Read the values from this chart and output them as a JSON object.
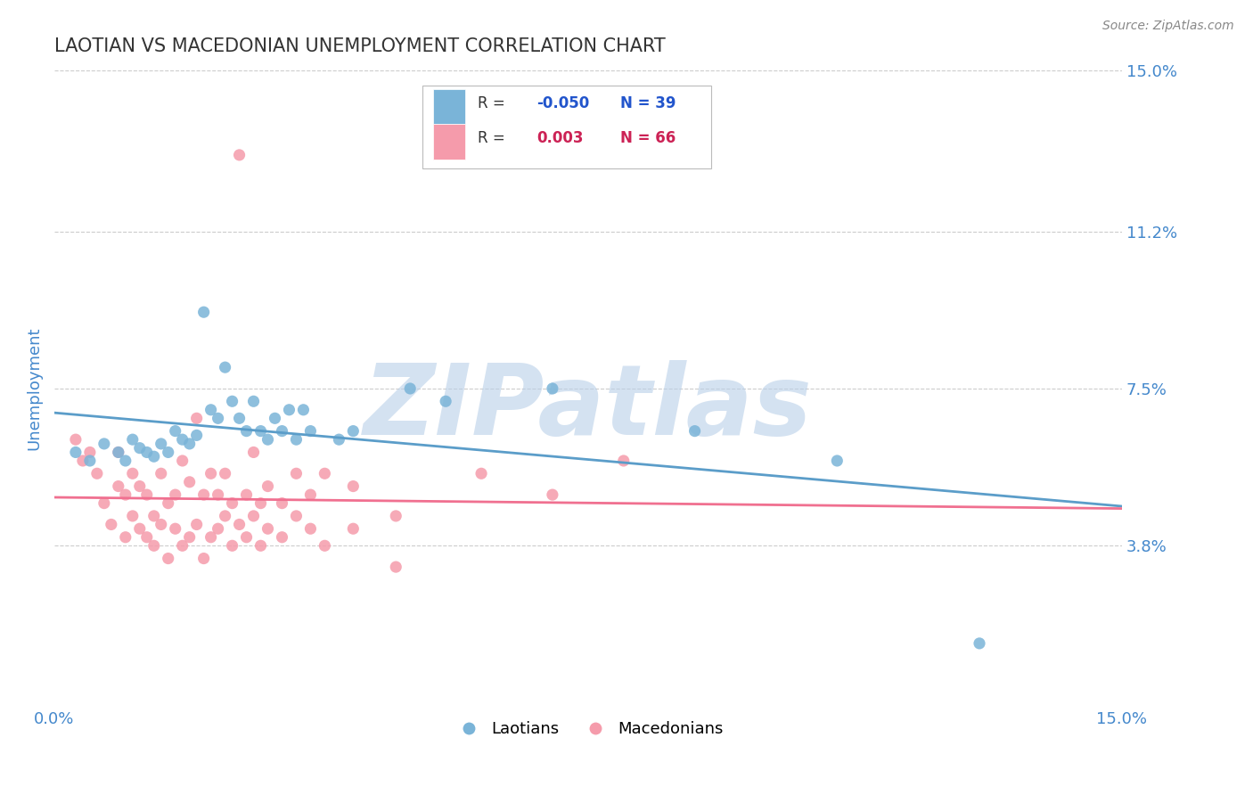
{
  "title": "LAOTIAN VS MACEDONIAN UNEMPLOYMENT CORRELATION CHART",
  "source": "Source: ZipAtlas.com",
  "ylabel": "Unemployment",
  "xlim": [
    0,
    0.15
  ],
  "ylim": [
    0,
    0.15
  ],
  "xticklabels": [
    "0.0%",
    "15.0%"
  ],
  "ytick_values": [
    0.038,
    0.075,
    0.112,
    0.15
  ],
  "ytick_labels": [
    "3.8%",
    "7.5%",
    "11.2%",
    "15.0%"
  ],
  "laotian_color": "#7ab4d8",
  "macedonian_color": "#f59bab",
  "laotian_line_color": "#5b9dc9",
  "macedonian_line_color": "#f07090",
  "legend_R_color_laotian": "#2255cc",
  "legend_R_color_macedonian": "#cc2255",
  "laotian_points": [
    [
      0.003,
      0.06
    ],
    [
      0.005,
      0.058
    ],
    [
      0.007,
      0.062
    ],
    [
      0.009,
      0.06
    ],
    [
      0.01,
      0.058
    ],
    [
      0.011,
      0.063
    ],
    [
      0.012,
      0.061
    ],
    [
      0.013,
      0.06
    ],
    [
      0.014,
      0.059
    ],
    [
      0.015,
      0.062
    ],
    [
      0.016,
      0.06
    ],
    [
      0.017,
      0.065
    ],
    [
      0.018,
      0.063
    ],
    [
      0.019,
      0.062
    ],
    [
      0.02,
      0.064
    ],
    [
      0.021,
      0.093
    ],
    [
      0.022,
      0.07
    ],
    [
      0.023,
      0.068
    ],
    [
      0.024,
      0.08
    ],
    [
      0.025,
      0.072
    ],
    [
      0.026,
      0.068
    ],
    [
      0.027,
      0.065
    ],
    [
      0.028,
      0.072
    ],
    [
      0.029,
      0.065
    ],
    [
      0.03,
      0.063
    ],
    [
      0.031,
      0.068
    ],
    [
      0.032,
      0.065
    ],
    [
      0.033,
      0.07
    ],
    [
      0.034,
      0.063
    ],
    [
      0.035,
      0.07
    ],
    [
      0.036,
      0.065
    ],
    [
      0.04,
      0.063
    ],
    [
      0.042,
      0.065
    ],
    [
      0.05,
      0.075
    ],
    [
      0.055,
      0.072
    ],
    [
      0.07,
      0.075
    ],
    [
      0.09,
      0.065
    ],
    [
      0.11,
      0.058
    ],
    [
      0.13,
      0.015
    ]
  ],
  "macedonian_points": [
    [
      0.003,
      0.063
    ],
    [
      0.004,
      0.058
    ],
    [
      0.005,
      0.06
    ],
    [
      0.006,
      0.055
    ],
    [
      0.007,
      0.048
    ],
    [
      0.008,
      0.043
    ],
    [
      0.009,
      0.052
    ],
    [
      0.009,
      0.06
    ],
    [
      0.01,
      0.05
    ],
    [
      0.01,
      0.04
    ],
    [
      0.011,
      0.045
    ],
    [
      0.011,
      0.055
    ],
    [
      0.012,
      0.042
    ],
    [
      0.012,
      0.052
    ],
    [
      0.013,
      0.04
    ],
    [
      0.013,
      0.05
    ],
    [
      0.014,
      0.045
    ],
    [
      0.014,
      0.038
    ],
    [
      0.015,
      0.055
    ],
    [
      0.015,
      0.043
    ],
    [
      0.016,
      0.048
    ],
    [
      0.016,
      0.035
    ],
    [
      0.017,
      0.05
    ],
    [
      0.017,
      0.042
    ],
    [
      0.018,
      0.058
    ],
    [
      0.018,
      0.038
    ],
    [
      0.019,
      0.053
    ],
    [
      0.019,
      0.04
    ],
    [
      0.02,
      0.068
    ],
    [
      0.02,
      0.043
    ],
    [
      0.021,
      0.05
    ],
    [
      0.021,
      0.035
    ],
    [
      0.022,
      0.055
    ],
    [
      0.022,
      0.04
    ],
    [
      0.023,
      0.05
    ],
    [
      0.023,
      0.042
    ],
    [
      0.024,
      0.045
    ],
    [
      0.024,
      0.055
    ],
    [
      0.025,
      0.048
    ],
    [
      0.025,
      0.038
    ],
    [
      0.026,
      0.13
    ],
    [
      0.026,
      0.043
    ],
    [
      0.027,
      0.05
    ],
    [
      0.027,
      0.04
    ],
    [
      0.028,
      0.06
    ],
    [
      0.028,
      0.045
    ],
    [
      0.029,
      0.048
    ],
    [
      0.029,
      0.038
    ],
    [
      0.03,
      0.052
    ],
    [
      0.03,
      0.042
    ],
    [
      0.032,
      0.048
    ],
    [
      0.032,
      0.04
    ],
    [
      0.034,
      0.055
    ],
    [
      0.034,
      0.045
    ],
    [
      0.036,
      0.05
    ],
    [
      0.036,
      0.042
    ],
    [
      0.038,
      0.055
    ],
    [
      0.038,
      0.038
    ],
    [
      0.042,
      0.042
    ],
    [
      0.042,
      0.052
    ],
    [
      0.048,
      0.045
    ],
    [
      0.048,
      0.033
    ],
    [
      0.06,
      0.055
    ],
    [
      0.07,
      0.05
    ],
    [
      0.08,
      0.058
    ]
  ],
  "watermark": "ZIPatlas",
  "watermark_color": "#b8cfe8",
  "grid_color": "#cccccc",
  "title_color": "#333333",
  "axis_label_color": "#4488cc",
  "background_color": "#ffffff"
}
